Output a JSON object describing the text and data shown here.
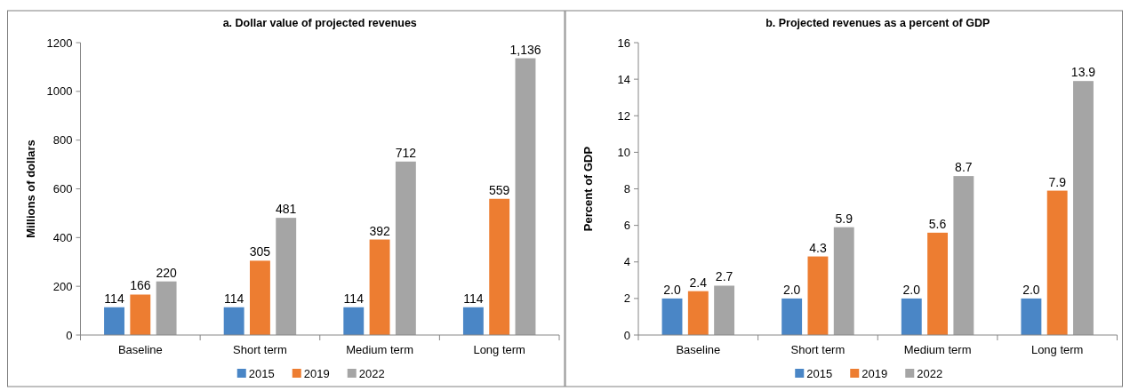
{
  "chart_data": [
    {
      "type": "bar",
      "title": "a. Dollar value of projected revenues",
      "ylabel": "Millions of dollars",
      "categories": [
        "Baseline",
        "Short term",
        "Medium term",
        "Long term"
      ],
      "series": [
        {
          "name": "2015",
          "color": "#4a86c6",
          "values": [
            114,
            114,
            114,
            114
          ]
        },
        {
          "name": "2019",
          "color": "#ed7d31",
          "values": [
            166,
            305,
            392,
            559
          ]
        },
        {
          "name": "2022",
          "color": "#a5a5a5",
          "values": [
            220,
            481,
            712,
            1136
          ]
        }
      ],
      "value_labels": [
        [
          "114",
          "114",
          "114",
          "114"
        ],
        [
          "166",
          "305",
          "392",
          "559"
        ],
        [
          "220",
          "481",
          "712",
          "1,136"
        ]
      ],
      "ylim": [
        0,
        1200
      ],
      "yticks": [
        0,
        200,
        400,
        600,
        800,
        1000,
        1200
      ],
      "grid": false,
      "legend": "bottom"
    },
    {
      "type": "bar",
      "title": "b. Projected revenues as a percent of GDP",
      "ylabel": "Percent of GDP",
      "categories": [
        "Baseline",
        "Short term",
        "Medium term",
        "Long term"
      ],
      "series": [
        {
          "name": "2015",
          "color": "#4a86c6",
          "values": [
            2.0,
            2.0,
            2.0,
            2.0
          ]
        },
        {
          "name": "2019",
          "color": "#ed7d31",
          "values": [
            2.4,
            4.3,
            5.6,
            7.9
          ]
        },
        {
          "name": "2022",
          "color": "#a5a5a5",
          "values": [
            2.7,
            5.9,
            8.7,
            13.9
          ]
        }
      ],
      "value_labels": [
        [
          "2.0",
          "2.0",
          "2.0",
          "2.0"
        ],
        [
          "2.4",
          "4.3",
          "5.6",
          "7.9"
        ],
        [
          "2.7",
          "5.9",
          "8.7",
          "13.9"
        ]
      ],
      "ylim": [
        0,
        16
      ],
      "yticks": [
        0,
        2,
        4,
        6,
        8,
        10,
        12,
        14,
        16
      ],
      "grid": false,
      "legend": "bottom"
    }
  ]
}
